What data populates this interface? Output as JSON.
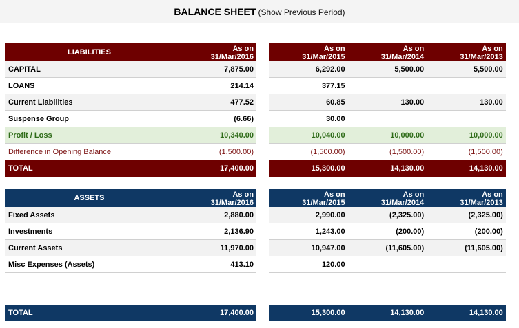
{
  "title": {
    "main": "BALANCE SHEET",
    "sub": "(Show Previous Period)"
  },
  "liabilities": {
    "header_label": "LIABILITIES",
    "current_col": {
      "line1": "As on",
      "line2": "31/Mar/2016"
    },
    "previous_cols": [
      {
        "line1": "As on",
        "line2": "31/Mar/2015"
      },
      {
        "line1": "As on",
        "line2": "31/Mar/2014"
      },
      {
        "line1": "As on",
        "line2": "31/Mar/2013"
      }
    ],
    "rows": [
      {
        "label": "CAPITAL",
        "current": "7,875.00",
        "previous": [
          "6,292.00",
          "5,500.00",
          "5,500.00"
        ]
      },
      {
        "label": "LOANS",
        "current": "214.14",
        "previous": [
          "377.15",
          "",
          ""
        ]
      },
      {
        "label": "Current Liabilities",
        "current": "477.52",
        "previous": [
          "60.85",
          "130.00",
          "130.00"
        ]
      },
      {
        "label": "Suspense Group",
        "current": "(6.66)",
        "previous": [
          "30.00",
          "",
          ""
        ]
      },
      {
        "label": "Profit / Loss",
        "current": "10,340.00",
        "previous": [
          "10,040.00",
          "10,000.00",
          "10,000.00"
        ]
      },
      {
        "label": "Difference in Opening Balance",
        "current": "(1,500.00)",
        "previous": [
          "(1,500.00)",
          "(1,500.00)",
          "(1,500.00)"
        ]
      }
    ],
    "total": {
      "label": "TOTAL",
      "current": "17,400.00",
      "previous": [
        "15,300.00",
        "14,130.00",
        "14,130.00"
      ]
    }
  },
  "assets": {
    "header_label": "ASSETS",
    "current_col": {
      "line1": "As on",
      "line2": "31/Mar/2016"
    },
    "previous_cols": [
      {
        "line1": "As on",
        "line2": "31/Mar/2015"
      },
      {
        "line1": "As on",
        "line2": "31/Mar/2014"
      },
      {
        "line1": "As on",
        "line2": "31/Mar/2013"
      }
    ],
    "rows": [
      {
        "label": "Fixed Assets",
        "current": "2,880.00",
        "previous": [
          "2,990.00",
          "(2,325.00)",
          "(2,325.00)"
        ]
      },
      {
        "label": "Investments",
        "current": "2,136.90",
        "previous": [
          "1,243.00",
          "(200.00)",
          "(200.00)"
        ]
      },
      {
        "label": "Current Assets",
        "current": "11,970.00",
        "previous": [
          "10,947.00",
          "(11,605.00)",
          "(11,605.00)"
        ]
      },
      {
        "label": "Misc Expenses (Assets)",
        "current": "413.10",
        "previous": [
          "120.00",
          "",
          ""
        ]
      }
    ],
    "total": {
      "label": "TOTAL",
      "current": "17,400.00",
      "previous": [
        "15,300.00",
        "14,130.00",
        "14,130.00"
      ]
    }
  },
  "colors": {
    "liabilities_header": "#6e0000",
    "assets_header": "#0f3864",
    "profit_row": "#e2efda",
    "profit_text": "#2e6b18",
    "diff_text": "#7a1010"
  }
}
